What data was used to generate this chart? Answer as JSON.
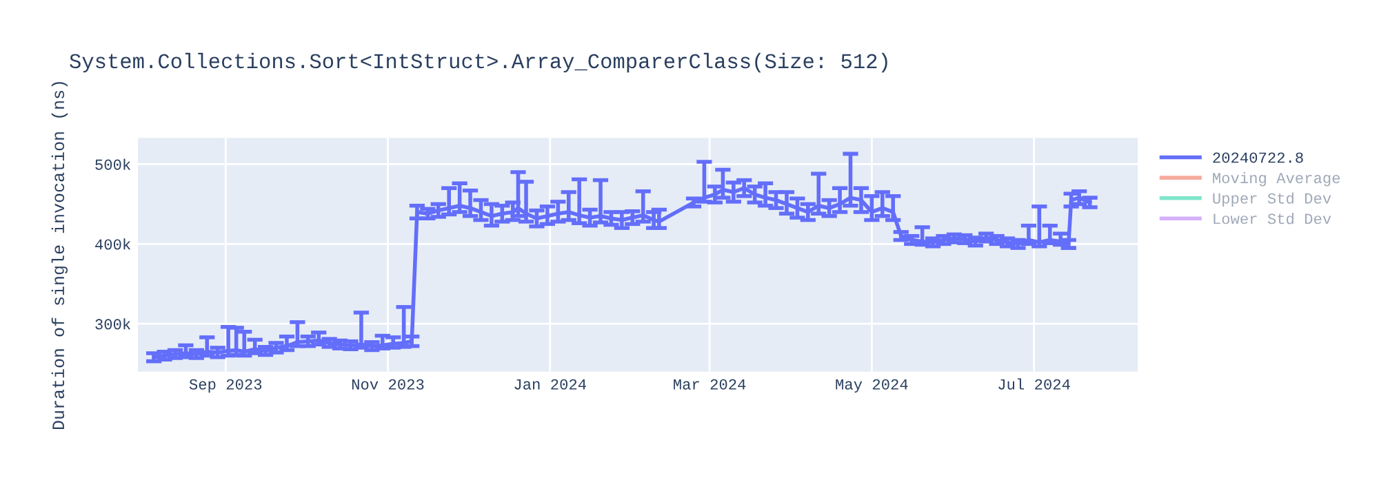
{
  "chart_data": {
    "type": "line",
    "title": "System.Collections.Sort<IntStruct>.Array_ComparerClass(Size: 512)",
    "ylabel": "Duration of single invocation (ns)",
    "xlim": [
      "2023-07-30",
      "2024-08-09"
    ],
    "xticks": [
      {
        "value": "2023-09-01",
        "label": "Sep 2023"
      },
      {
        "value": "2023-11-01",
        "label": "Nov 2023"
      },
      {
        "value": "2024-01-01",
        "label": "Jan 2024"
      },
      {
        "value": "2024-03-01",
        "label": "Mar 2024"
      },
      {
        "value": "2024-05-01",
        "label": "May 2024"
      },
      {
        "value": "2024-07-01",
        "label": "Jul 2024"
      }
    ],
    "ylim": [
      240000,
      533000
    ],
    "yticks": [
      {
        "value": 300000,
        "label": "300k"
      },
      {
        "value": 400000,
        "label": "400k"
      },
      {
        "value": 500000,
        "label": "500k"
      }
    ],
    "grid": true,
    "legend": "top right",
    "marker": "none",
    "line_style": "solid",
    "series": [
      {
        "name": "20240722.8",
        "color": "#636efa",
        "x": [
          "2023-08-05",
          "2023-08-09",
          "2023-08-13",
          "2023-08-17",
          "2023-08-21",
          "2023-08-25",
          "2023-08-29",
          "2023-09-02",
          "2023-09-05",
          "2023-09-08",
          "2023-09-12",
          "2023-09-16",
          "2023-09-20",
          "2023-09-24",
          "2023-09-28",
          "2023-10-02",
          "2023-10-06",
          "2023-10-10",
          "2023-10-14",
          "2023-10-18",
          "2023-10-22",
          "2023-10-26",
          "2023-10-30",
          "2023-11-03",
          "2023-11-07",
          "2023-11-10",
          "2023-11-12",
          "2023-11-16",
          "2023-11-20",
          "2023-11-24",
          "2023-11-28",
          "2023-12-02",
          "2023-12-06",
          "2023-12-10",
          "2023-12-14",
          "2023-12-18",
          "2023-12-20",
          "2023-12-23",
          "2023-12-27",
          "2023-12-31",
          "2024-01-04",
          "2024-01-08",
          "2024-01-12",
          "2024-01-16",
          "2024-01-20",
          "2024-01-24",
          "2024-01-28",
          "2024-02-01",
          "2024-02-05",
          "2024-02-09",
          "2024-02-11",
          "2024-02-24",
          "2024-02-28",
          "2024-03-03",
          "2024-03-06",
          "2024-03-10",
          "2024-03-14",
          "2024-03-18",
          "2024-03-22",
          "2024-03-26",
          "2024-03-30",
          "2024-04-03",
          "2024-04-07",
          "2024-04-11",
          "2024-04-15",
          "2024-04-19",
          "2024-04-23",
          "2024-04-27",
          "2024-05-01",
          "2024-05-05",
          "2024-05-09",
          "2024-05-12",
          "2024-05-16",
          "2024-05-20",
          "2024-05-24",
          "2024-05-28",
          "2024-06-01",
          "2024-06-05",
          "2024-06-09",
          "2024-06-13",
          "2024-06-17",
          "2024-06-21",
          "2024-06-25",
          "2024-06-29",
          "2024-07-03",
          "2024-07-07",
          "2024-07-11",
          "2024-07-14",
          "2024-07-15",
          "2024-07-18",
          "2024-07-22"
        ],
        "values": [
          258000,
          260000,
          262000,
          263000,
          262000,
          265000,
          264000,
          266000,
          267000,
          265000,
          268000,
          266000,
          270000,
          272000,
          277000,
          278000,
          279000,
          276000,
          274000,
          273000,
          274000,
          272000,
          273000,
          275000,
          276000,
          278000,
          440000,
          438000,
          442000,
          445000,
          448000,
          445000,
          440000,
          435000,
          438000,
          440000,
          445000,
          438000,
          432000,
          435000,
          438000,
          440000,
          436000,
          433000,
          435000,
          432000,
          430000,
          433000,
          436000,
          430000,
          428000,
          452000,
          458000,
          462000,
          468000,
          465000,
          470000,
          462000,
          458000,
          455000,
          450000,
          445000,
          440000,
          448000,
          445000,
          450000,
          458000,
          455000,
          440000,
          445000,
          440000,
          410000,
          405000,
          403000,
          402000,
          405000,
          407000,
          406000,
          403000,
          408000,
          405000,
          402000,
          400000,
          405000,
          402000,
          405000,
          403000,
          400000,
          455000,
          458000,
          452000
        ],
        "errors": [
          5000,
          5000,
          5000,
          [
            258000,
            273000
          ],
          5000,
          [
            260000,
            283000
          ],
          6000,
          [
            260000,
            296000
          ],
          [
            261000,
            295000
          ],
          [
            260000,
            290000
          ],
          [
            263000,
            280000
          ],
          5000,
          6000,
          [
            267000,
            284000
          ],
          [
            272000,
            302000
          ],
          6000,
          [
            274000,
            289000
          ],
          5000,
          5000,
          5000,
          [
            270000,
            314000
          ],
          5000,
          [
            269000,
            285000
          ],
          [
            270000,
            283000
          ],
          [
            271000,
            321000
          ],
          6000,
          8000,
          6000,
          8000,
          [
            437000,
            470000
          ],
          [
            440000,
            476000
          ],
          [
            435000,
            467000
          ],
          [
            430000,
            455000
          ],
          [
            423000,
            450000
          ],
          10000,
          [
            430000,
            452000
          ],
          [
            435000,
            490000
          ],
          [
            428000,
            478000
          ],
          10000,
          [
            425000,
            447000
          ],
          [
            428000,
            453000
          ],
          [
            430000,
            465000
          ],
          [
            426000,
            481000
          ],
          10000,
          [
            427000,
            480000
          ],
          8000,
          10000,
          8000,
          [
            428000,
            466000
          ],
          10000,
          [
            420000,
            443000
          ],
          5000,
          [
            453000,
            503000
          ],
          10000,
          [
            458000,
            493000
          ],
          12000,
          10000,
          10000,
          [
            448000,
            476000
          ],
          10000,
          [
            438000,
            465000
          ],
          12000,
          10000,
          [
            438000,
            488000
          ],
          10000,
          [
            440000,
            470000
          ],
          [
            448000,
            513000
          ],
          15000,
          [
            430000,
            460000
          ],
          [
            435000,
            465000
          ],
          [
            430000,
            460000
          ],
          5000,
          5000,
          [
            399000,
            421000
          ],
          5000,
          5000,
          5000,
          5000,
          5000,
          5000,
          5000,
          5000,
          5000,
          [
            400000,
            423000
          ],
          [
            397000,
            447000
          ],
          [
            401000,
            423000
          ],
          [
            399000,
            413000
          ],
          5000,
          8000,
          8000,
          6000
        ]
      },
      {
        "name": "Moving Average",
        "color": "#ef553b",
        "values": [
          null
        ]
      },
      {
        "name": "Upper Std Dev",
        "color": "#00cc96",
        "values": [
          null
        ]
      },
      {
        "name": "Lower Std Dev",
        "color": "#ab63fa",
        "values": [
          null
        ]
      }
    ]
  }
}
